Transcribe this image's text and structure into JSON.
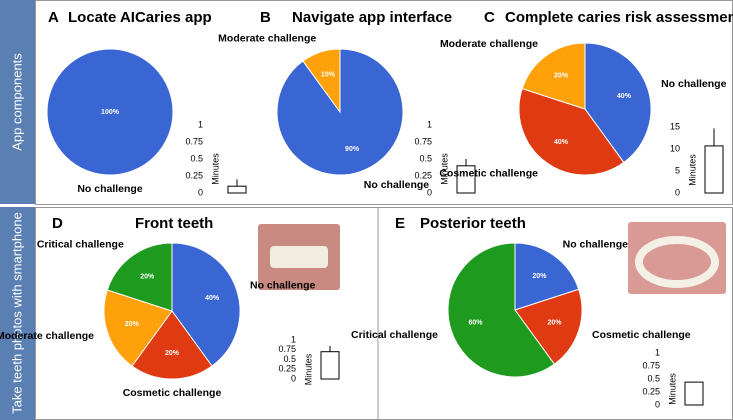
{
  "row_labels": [
    "App components",
    "Take teeth photos with smartphone"
  ],
  "chart_data": [
    {
      "type": "pie",
      "panel": "A",
      "title": "Locate AICaries app",
      "categories": [
        "No challenge"
      ],
      "values": [
        100
      ],
      "value_labels": [
        "100%"
      ],
      "colors": [
        "#3a66d4"
      ],
      "inset": {
        "type": "bar",
        "ylabel": "Minutes",
        "values": [
          0.1
        ],
        "errors": [
          0.1
        ],
        "color": "#ffffff",
        "ylim": [
          0,
          1
        ],
        "yticks": [
          0,
          0.25,
          0.5,
          0.75,
          1
        ]
      }
    },
    {
      "type": "pie",
      "panel": "B",
      "title": "Navigate app interface",
      "categories": [
        "No challenge",
        "Moderate challenge"
      ],
      "values": [
        90,
        10
      ],
      "value_labels": [
        "90%",
        "10%"
      ],
      "colors": [
        "#3a66d4",
        "#ffa10a"
      ],
      "inset": {
        "type": "bar",
        "ylabel": "Minutes",
        "values": [
          0.4
        ],
        "errors": [
          0.1
        ],
        "color": "#ffffff",
        "ylim": [
          0,
          1
        ],
        "yticks": [
          0,
          0.25,
          0.5,
          0.75,
          1
        ]
      }
    },
    {
      "type": "pie",
      "panel": "C",
      "title": "Complete caries risk assessment",
      "categories": [
        "No challenge",
        "Cosmetic challenge",
        "Moderate challenge"
      ],
      "values": [
        40,
        40,
        20
      ],
      "value_labels": [
        "40%",
        "40%",
        "20%"
      ],
      "colors": [
        "#3a66d4",
        "#e03a12",
        "#ffa10a"
      ],
      "inset": {
        "type": "bar",
        "ylabel": "Minutes",
        "values": [
          10.7
        ],
        "errors": [
          4
        ],
        "color": "#ffffff",
        "ylim": [
          0,
          15
        ],
        "yticks": [
          0,
          5,
          10,
          15
        ]
      }
    },
    {
      "type": "pie",
      "panel": "D",
      "title": "Front teeth",
      "categories": [
        "No challenge",
        "Cosmetic challenge",
        "Moderate challenge",
        "Critical challenge"
      ],
      "values": [
        40,
        20,
        20,
        20
      ],
      "value_labels": [
        "40%",
        "20%",
        "20%",
        "20%"
      ],
      "colors": [
        "#3a66d4",
        "#e03a12",
        "#ffa10a",
        "#1e9a1e"
      ],
      "inset": {
        "type": "bar",
        "ylabel": "Minutes",
        "values": [
          0.7
        ],
        "errors": [
          0.15
        ],
        "color": "#ffffff",
        "ylim": [
          0,
          1
        ],
        "yticks": [
          0,
          0.25,
          0.5,
          0.75,
          1
        ]
      }
    },
    {
      "type": "pie",
      "panel": "E",
      "title": "Posterior teeth",
      "categories": [
        "No challenge",
        "Cosmetic challenge",
        "Critical challenge"
      ],
      "values": [
        20,
        20,
        60
      ],
      "value_labels": [
        "20%",
        "20%",
        "60%"
      ],
      "colors": [
        "#3a66d4",
        "#e03a12",
        "#1e9a1e"
      ],
      "inset": {
        "type": "bar",
        "ylabel": "Minutes",
        "values": [
          0.44
        ],
        "color": "#ffffff",
        "ylim": [
          0,
          1
        ],
        "yticks": [
          0,
          0.25,
          0.5,
          0.75,
          1
        ]
      }
    }
  ]
}
